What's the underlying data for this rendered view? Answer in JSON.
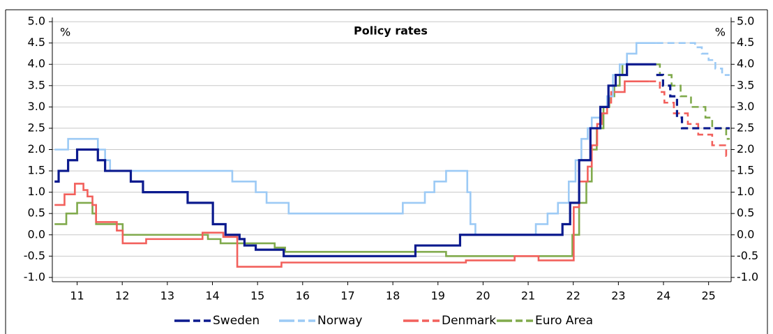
{
  "chart_data": {
    "type": "line",
    "step": true,
    "title": "Policy rates",
    "y_unit_left": "%",
    "y_unit_right": "%",
    "grid": true,
    "legend": "bottom",
    "xlim": [
      2010.95,
      2026.0
    ],
    "xticks": [
      {
        "value": 2011.5,
        "label": "11"
      },
      {
        "value": 2012.5,
        "label": "12"
      },
      {
        "value": 2013.5,
        "label": "13"
      },
      {
        "value": 2014.5,
        "label": "14"
      },
      {
        "value": 2015.5,
        "label": "15"
      },
      {
        "value": 2016.5,
        "label": "16"
      },
      {
        "value": 2017.5,
        "label": "17"
      },
      {
        "value": 2018.5,
        "label": "18"
      },
      {
        "value": 2019.5,
        "label": "19"
      },
      {
        "value": 2020.5,
        "label": "20"
      },
      {
        "value": 2021.5,
        "label": "21"
      },
      {
        "value": 2022.5,
        "label": "22"
      },
      {
        "value": 2023.5,
        "label": "23"
      },
      {
        "value": 2024.5,
        "label": "24"
      },
      {
        "value": 2025.5,
        "label": "25"
      }
    ],
    "ylim": [
      -1.1,
      5.1
    ],
    "yticks": [
      {
        "value": 5,
        "label": "5.0"
      },
      {
        "value": 4.5,
        "label": "4.5"
      },
      {
        "value": 4,
        "label": "4.0"
      },
      {
        "value": 3.5,
        "label": "3.5"
      },
      {
        "value": 3,
        "label": "3.0"
      },
      {
        "value": 2.5,
        "label": "2.5"
      },
      {
        "value": 2,
        "label": "2.0"
      },
      {
        "value": 1.5,
        "label": "1.5"
      },
      {
        "value": 1,
        "label": "1.0"
      },
      {
        "value": 0.5,
        "label": "0.5"
      },
      {
        "value": 0,
        "label": "0.0"
      },
      {
        "value": -0.5,
        "label": "-0.5"
      },
      {
        "value": -1,
        "label": "-1.0"
      }
    ],
    "series": [
      {
        "name": "Sweden",
        "color": "#0b1a8e",
        "x": [
          2011.0,
          2011.09,
          2011.3,
          2011.5,
          2011.96,
          2012.12,
          2012.69,
          2012.96,
          2013.95,
          2014.51,
          2014.79,
          2015.1,
          2015.21,
          2015.46,
          2016.08,
          2019.0,
          2019.99,
          2022.26,
          2022.43,
          2022.63,
          2022.88,
          2023.1,
          2023.28,
          2023.44,
          2023.69,
          2024.34
        ],
        "values": [
          1.25,
          1.5,
          1.75,
          2.0,
          1.75,
          1.5,
          1.25,
          1.0,
          0.75,
          0.25,
          0.0,
          -0.1,
          -0.25,
          -0.35,
          -0.5,
          -0.25,
          0.0,
          0.25,
          0.75,
          1.75,
          2.5,
          3.0,
          3.5,
          3.75,
          4.0,
          4.0
        ],
        "forecast": {
          "x": [
            2024.34,
            2024.49,
            2024.65,
            2024.8,
            2024.91,
            2025.97
          ],
          "values": [
            3.75,
            3.5,
            3.25,
            2.75,
            2.5,
            2.5
          ]
        }
      },
      {
        "name": "Norway",
        "color": "#9ccaf5",
        "x": [
          2011.0,
          2011.3,
          2011.96,
          2012.12,
          2012.23,
          2014.94,
          2015.46,
          2015.7,
          2016.19,
          2018.72,
          2019.21,
          2019.42,
          2019.68,
          2020.15,
          2020.22,
          2020.33,
          2021.67,
          2021.93,
          2022.16,
          2022.4,
          2022.55,
          2022.68,
          2022.82,
          2022.91,
          2023.1,
          2023.25,
          2023.38,
          2023.53,
          2023.69,
          2023.9,
          2024.34
        ],
        "values": [
          2.0,
          2.25,
          2.0,
          1.75,
          1.5,
          1.25,
          1.0,
          0.75,
          0.5,
          0.75,
          1.0,
          1.25,
          1.5,
          1.0,
          0.25,
          0.0,
          0.25,
          0.5,
          0.75,
          1.25,
          1.75,
          2.25,
          2.5,
          2.75,
          3.0,
          3.25,
          3.75,
          4.0,
          4.25,
          4.5,
          4.5
        ],
        "forecast": {
          "x": [
            2024.34,
            2025.2,
            2025.35,
            2025.5,
            2025.65,
            2025.8,
            2025.97
          ],
          "values": [
            4.5,
            4.4,
            4.25,
            4.1,
            3.9,
            3.75,
            3.75
          ]
        }
      },
      {
        "name": "Denmark",
        "color": "#f2605c",
        "x": [
          2011.0,
          2011.22,
          2011.45,
          2011.64,
          2011.73,
          2011.84,
          2011.92,
          2012.38,
          2012.51,
          2013.03,
          2014.28,
          2014.74,
          2015.05,
          2016.03,
          2020.12,
          2021.2,
          2021.73,
          2022.51,
          2022.63,
          2022.82,
          2022.91,
          2023.03,
          2023.13,
          2023.25,
          2023.34,
          2023.64,
          2024.18
        ],
        "values": [
          0.7,
          0.95,
          1.2,
          1.05,
          0.9,
          0.7,
          0.3,
          0.1,
          -0.2,
          -0.1,
          0.05,
          -0.05,
          -0.75,
          -0.65,
          -0.6,
          -0.5,
          -0.6,
          0.65,
          1.25,
          1.6,
          2.1,
          2.6,
          2.85,
          3.1,
          3.35,
          3.6,
          3.6
        ],
        "forecast": {
          "x": [
            2024.18,
            2024.42,
            2024.52,
            2024.73,
            2025.04,
            2025.27,
            2025.58,
            2025.89,
            2025.97
          ],
          "values": [
            3.6,
            3.35,
            3.1,
            2.85,
            2.6,
            2.35,
            2.1,
            1.85,
            1.85
          ]
        }
      },
      {
        "name": "Euro Area",
        "color": "#80aa4c",
        "x": [
          2011.0,
          2011.26,
          2011.5,
          2011.84,
          2011.92,
          2012.51,
          2014.4,
          2014.68,
          2015.88,
          2016.11,
          2019.68,
          2022.48,
          2022.63,
          2022.79,
          2022.91,
          2023.02,
          2023.17,
          2023.3,
          2023.41,
          2023.53,
          2023.59,
          2024.34
        ],
        "values": [
          0.25,
          0.5,
          0.75,
          0.5,
          0.25,
          0.0,
          -0.1,
          -0.2,
          -0.3,
          -0.4,
          -0.5,
          0.0,
          0.75,
          1.25,
          2.0,
          2.5,
          3.0,
          3.25,
          3.5,
          3.75,
          4.0,
          4.0
        ],
        "forecast": {
          "x": [
            2024.34,
            2024.42,
            2024.68,
            2024.88,
            2025.11,
            2025.43,
            2025.58,
            2025.89,
            2025.97
          ],
          "values": [
            4.0,
            3.75,
            3.5,
            3.25,
            3.0,
            2.75,
            2.5,
            2.25,
            2.25
          ]
        }
      }
    ]
  }
}
